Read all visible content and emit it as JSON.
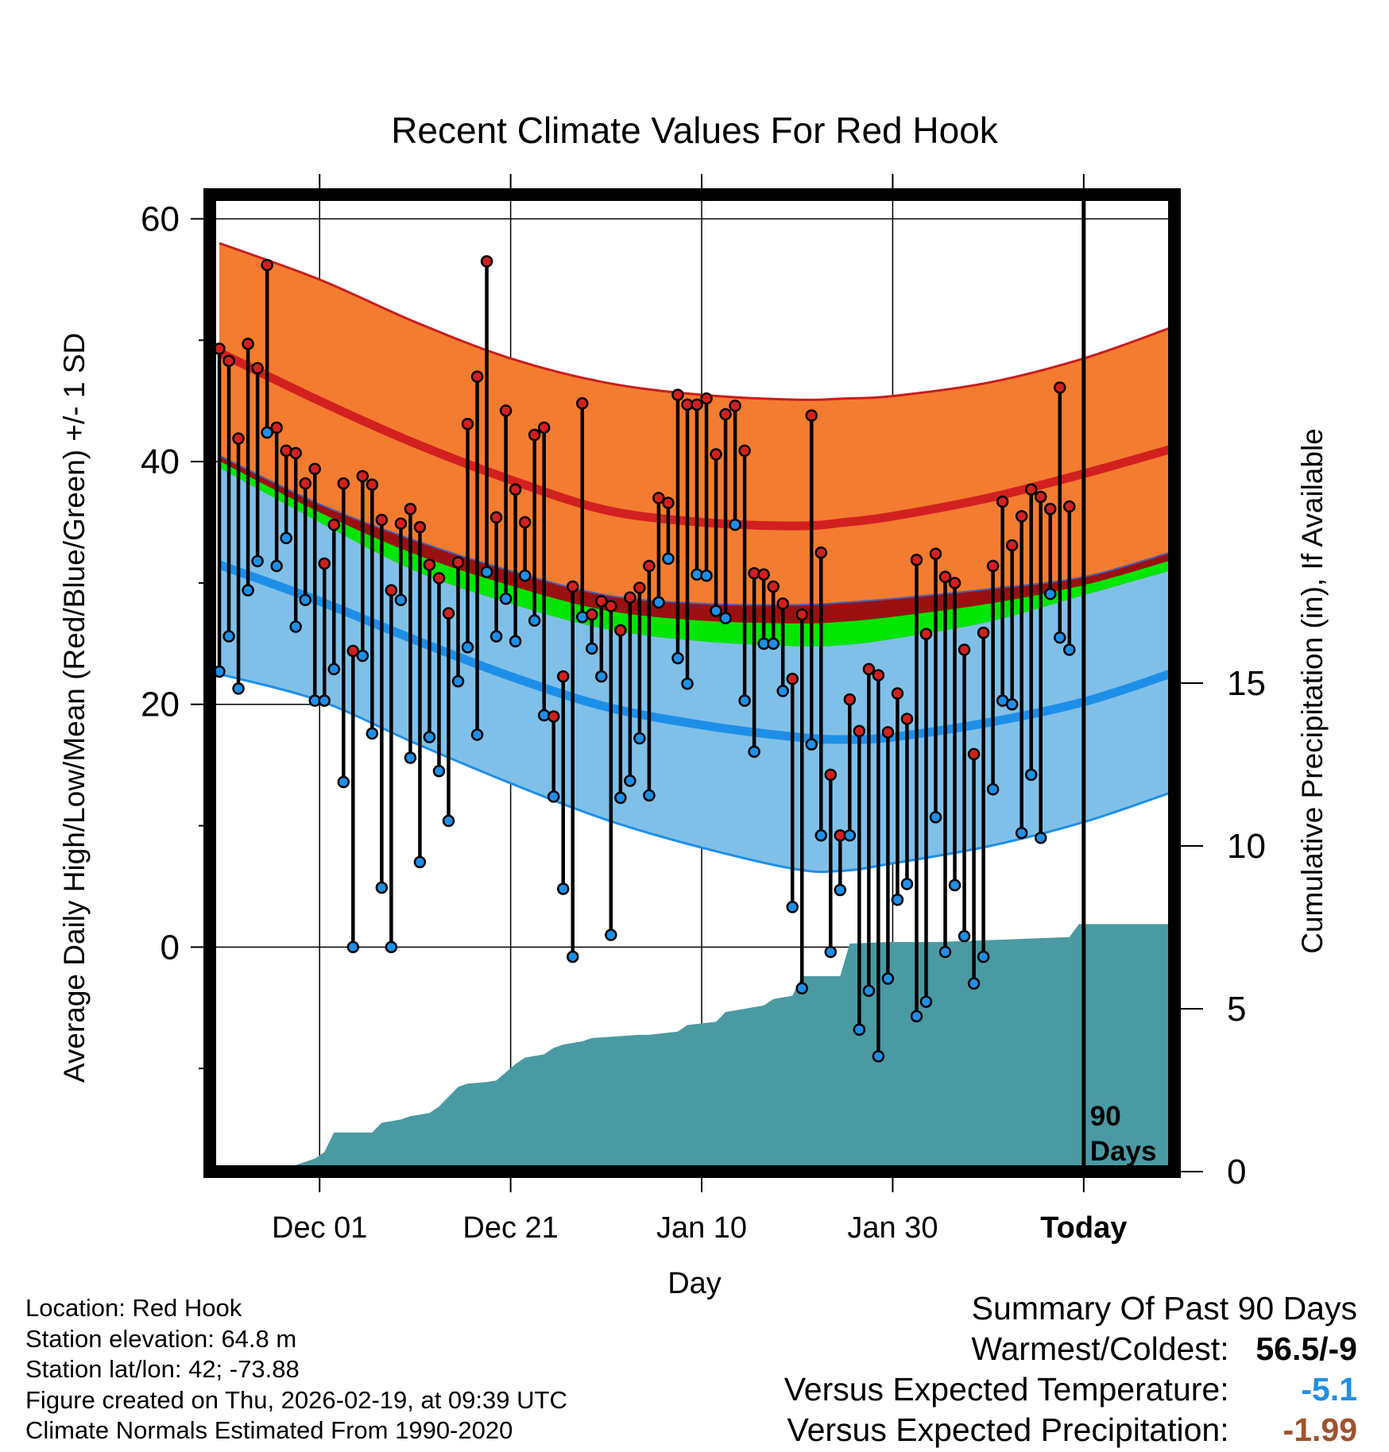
{
  "chart_data": {
    "type": "line",
    "title": "Recent Climate Values For Red Hook",
    "xlabel": "Day",
    "ylabel": "Average Daily High/Low/Mean (Red/Blue/Green) +/- 1 SD",
    "ylabel_right": "Cumulative Precipitation (in), If Available",
    "xlim": [
      -11.5,
      89.5
    ],
    "ylim": [
      -18.5,
      62
    ],
    "precip_ylim": [
      0,
      30
    ],
    "x_ticks": [
      {
        "x": 0,
        "label": "Dec 01",
        "bold": false
      },
      {
        "x": 20,
        "label": "Dec 21",
        "bold": false
      },
      {
        "x": 40,
        "label": "Jan 10",
        "bold": false
      },
      {
        "x": 60,
        "label": "Jan 30",
        "bold": false
      },
      {
        "x": 80,
        "label": "Today",
        "bold": true
      }
    ],
    "y_ticks": [
      0,
      20,
      40,
      60
    ],
    "y_minor_ticks": [
      -10,
      10,
      30,
      50
    ],
    "precip_ticks": [
      0,
      5,
      10,
      15
    ],
    "today_x": 80,
    "window_label": "90 Days",
    "normals": {
      "x": [
        -10.5,
        0,
        10,
        20,
        30,
        40,
        50,
        55,
        60,
        70,
        80,
        89
      ],
      "high_mean": [
        49,
        45,
        41.5,
        38.5,
        36,
        35,
        34.7,
        35,
        35.5,
        37,
        39,
        41
      ],
      "high_upper": [
        58,
        55,
        51.5,
        48.5,
        46.5,
        45.5,
        45.1,
        45.2,
        45.4,
        46.5,
        48.5,
        51
      ],
      "high_lower": [
        40.5,
        36.5,
        33.5,
        31,
        29,
        28.3,
        28.2,
        28.4,
        28.7,
        29.5,
        30.5,
        32.5
      ],
      "mean_upper": [
        40.5,
        36.5,
        33.5,
        31,
        29,
        28.3,
        28.2,
        28.4,
        28.7,
        29.5,
        30.5,
        32.5
      ],
      "mean_lower": [
        39.5,
        35,
        31,
        28.3,
        26.2,
        25.2,
        24.8,
        24.9,
        25.4,
        26.8,
        29,
        31
      ],
      "low_upper": [
        39.5,
        35,
        31,
        28.3,
        26.2,
        25.2,
        24.8,
        24.9,
        25.4,
        26.8,
        29,
        31
      ],
      "low_mean": [
        31.5,
        28.5,
        25.3,
        22.3,
        19.8,
        18.3,
        17.3,
        17.1,
        17.3,
        18.5,
        20.2,
        22.5
      ],
      "low_lower": [
        22.5,
        20.3,
        16.8,
        13.5,
        10.5,
        8.2,
        6.4,
        6.3,
        6.9,
        8.3,
        10.3,
        12.7
      ]
    },
    "series": [
      {
        "name": "Daily High",
        "color": "#d22020",
        "values": [
          49.3,
          48.3,
          41.9,
          49.7,
          47.7,
          56.2,
          42.8,
          40.9,
          40.7,
          38.2,
          39.4,
          31.6,
          34.8,
          38.2,
          24.4,
          38.8,
          38.1,
          35.2,
          29.4,
          34.9,
          36.1,
          34.6,
          31.5,
          30.4,
          27.5,
          31.7,
          43.1,
          47.0,
          56.5,
          35.4,
          44.2,
          37.7,
          35.0,
          42.2,
          42.8,
          19.0,
          22.3,
          29.7,
          44.8,
          27.4,
          28.5,
          28.1,
          26.1,
          28.8,
          29.6,
          31.4,
          37.0,
          36.6,
          45.5,
          44.7,
          44.7,
          45.2,
          40.6,
          43.9,
          44.6,
          40.9,
          30.8,
          30.7,
          29.7,
          28.3,
          22.1,
          27.4,
          43.8,
          32.5,
          14.2,
          9.2,
          20.4,
          17.8,
          22.9,
          22.4,
          17.7,
          20.9,
          18.8,
          31.9,
          25.8,
          32.4,
          30.5,
          30.0,
          24.5,
          15.9,
          25.9,
          31.4,
          36.7,
          33.1,
          35.5,
          37.7,
          37.1,
          36.1,
          46.1,
          36.3
        ]
      },
      {
        "name": "Daily Low",
        "color": "#1e8fe8",
        "values": [
          22.7,
          25.6,
          21.3,
          29.4,
          31.8,
          42.4,
          31.4,
          33.7,
          26.4,
          28.6,
          20.3,
          20.3,
          22.9,
          13.6,
          0.0,
          24.0,
          17.6,
          4.9,
          0.0,
          28.6,
          15.6,
          7.0,
          17.3,
          14.5,
          10.4,
          21.9,
          24.7,
          17.5,
          30.9,
          25.6,
          28.7,
          25.2,
          30.6,
          26.9,
          19.1,
          12.4,
          4.8,
          -0.8,
          27.2,
          24.6,
          22.3,
          1.0,
          12.3,
          13.7,
          17.2,
          12.5,
          28.4,
          32.0,
          23.8,
          21.7,
          30.7,
          30.6,
          27.7,
          27.1,
          34.8,
          20.3,
          16.1,
          25.0,
          25.0,
          21.1,
          3.3,
          -3.4,
          16.7,
          9.2,
          -0.4,
          4.7,
          9.2,
          -6.8,
          -3.6,
          -9.0,
          -2.6,
          3.9,
          5.2,
          -5.7,
          -4.5,
          10.7,
          -0.4,
          5.1,
          0.9,
          -3.0,
          -0.8,
          13.0,
          20.3,
          20.0,
          9.4,
          14.2,
          9.0,
          29.1,
          25.5,
          24.5
        ]
      },
      {
        "name": "Cumulative Precipitation",
        "color": "#4a9aa3",
        "x": [
          -10.5,
          -5.5,
          -4.5,
          -3.5,
          -2.5,
          -1.5,
          -0.5,
          0.5,
          1.5,
          5.5,
          6.5,
          8.5,
          9.5,
          11.5,
          12.5,
          14.5,
          15.5,
          17.5,
          18.5,
          20.5,
          21.5,
          23.5,
          24.5,
          25.5,
          26.5,
          27.5,
          28.5,
          33.5,
          34.5,
          37.5,
          38.5,
          41.5,
          42.5,
          46.5,
          47.5,
          49.5,
          50.5,
          54.5,
          55.5,
          59.5,
          64.5,
          69.5,
          78.5,
          79.5,
          89.5
        ],
        "values": [
          0,
          0,
          0.1,
          0.15,
          0.2,
          0.3,
          0.4,
          0.6,
          1.2,
          1.2,
          1.5,
          1.6,
          1.7,
          1.8,
          2.0,
          2.6,
          2.7,
          2.75,
          2.8,
          3.3,
          3.5,
          3.6,
          3.8,
          3.9,
          3.95,
          4.0,
          4.1,
          4.2,
          4.2,
          4.3,
          4.5,
          4.6,
          4.9,
          5.1,
          5.3,
          5.4,
          6.0,
          6.0,
          7.0,
          7.05,
          7.05,
          7.1,
          7.2,
          7.6,
          7.6
        ]
      }
    ]
  },
  "info": {
    "location": "Location: Red Hook",
    "elevation": "Station elevation: 64.8 m",
    "latlon": "Station lat/lon: 42; -73.88",
    "created": "Figure created on Thu, 2026-02-19, at 09:39 UTC",
    "normals": "Climate Normals Estimated From 1990-2020"
  },
  "summary": {
    "title": "Summary Of Past 90 Days",
    "warm_cold_label": "Warmest/Coldest:",
    "warm_cold_value": "56.5/-9",
    "temp_label": "Versus Expected Temperature:",
    "temp_value": "-5.1",
    "temp_color": "#1e8fe8",
    "precip_label": "Versus Expected Precipitation:",
    "precip_value": "-1.99",
    "precip_color": "#a0522d"
  },
  "colors": {
    "high_band": "#f47c30",
    "high_mean": "#d22020",
    "mean_band": "#00e600",
    "mean_dark": "#9a1010",
    "low_band": "#80c0e8",
    "low_mean": "#1e8fe8",
    "precip_fill": "#4a9aa3"
  }
}
